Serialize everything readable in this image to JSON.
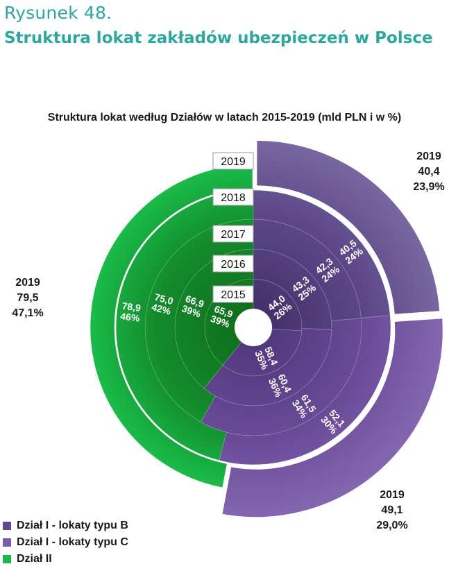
{
  "figure": {
    "label": "Rysunek 48.",
    "title": "Struktura lokat zakładów ubezpieczeń w Polsce"
  },
  "chart_data": {
    "type": "pie",
    "variant": "multi-level donut (sunburst)",
    "title": "Struktura lokat według Działów w latach 2015-2019 (mld PLN i w %)",
    "years": [
      "2015",
      "2016",
      "2017",
      "2018",
      "2019"
    ],
    "series": [
      {
        "name": "Dział I - lokaty typu B",
        "color": "#5e4a8a",
        "values": [
          44.0,
          43.3,
          42.3,
          40.5,
          40.4
        ],
        "shares": [
          "26%",
          "25%",
          "24%",
          "24%",
          "23,9%"
        ]
      },
      {
        "name": "Dział I - lokaty typu C",
        "color": "#7a5aa6",
        "values": [
          58.4,
          60.4,
          61.5,
          52.1,
          49.1
        ],
        "shares": [
          "35%",
          "36%",
          "34%",
          "30%",
          "29,0%"
        ]
      },
      {
        "name": "Dział II",
        "color": "#1db84c",
        "values": [
          65.9,
          66.9,
          75.0,
          78.9,
          79.5
        ],
        "shares": [
          "39%",
          "39%",
          "42%",
          "46%",
          "47,1%"
        ]
      }
    ],
    "ring_labels": [
      {
        "value": "44,0",
        "share": "26%",
        "series": 0,
        "ring": 0
      },
      {
        "value": "43,3",
        "share": "25%",
        "series": 0,
        "ring": 1
      },
      {
        "value": "42,3",
        "share": "24%",
        "series": 0,
        "ring": 2
      },
      {
        "value": "40,5",
        "share": "24%",
        "series": 0,
        "ring": 3
      },
      {
        "value": "58,4",
        "share": "35%",
        "series": 1,
        "ring": 0
      },
      {
        "value": "60,4",
        "share": "36%",
        "series": 1,
        "ring": 1
      },
      {
        "value": "61,5",
        "share": "34%",
        "series": 1,
        "ring": 2
      },
      {
        "value": "52,1",
        "share": "30%",
        "series": 1,
        "ring": 3
      },
      {
        "value": "65,9",
        "share": "39%",
        "series": 2,
        "ring": 0
      },
      {
        "value": "66,9",
        "share": "39%",
        "series": 2,
        "ring": 1
      },
      {
        "value": "75,0",
        "share": "42%",
        "series": 2,
        "ring": 2
      },
      {
        "value": "78,9",
        "share": "46%",
        "series": 2,
        "ring": 3
      }
    ],
    "outer_callouts": [
      {
        "series": 0,
        "year": "2019",
        "value": "40,4",
        "share": "23,9%"
      },
      {
        "series": 1,
        "year": "2019",
        "value": "49,1",
        "share": "29,0%"
      },
      {
        "series": 2,
        "year": "2019",
        "value": "79,5",
        "share": "47,1%"
      }
    ],
    "legend_position": "bottom-left"
  }
}
